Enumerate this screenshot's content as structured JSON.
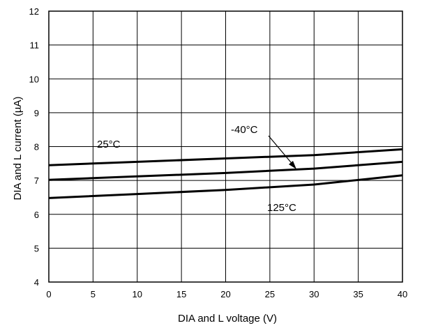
{
  "chart_data": {
    "type": "line",
    "title": "",
    "xlabel": "DIA and L voltage (V)",
    "ylabel": "DIA and L current (µA)",
    "xlim": [
      0,
      40
    ],
    "ylim": [
      4,
      12
    ],
    "x_ticks": [
      "0",
      "5",
      "10",
      "15",
      "20",
      "25",
      "30",
      "35",
      "40"
    ],
    "y_ticks": [
      "4",
      "5",
      "6",
      "7",
      "8",
      "9",
      "10",
      "11",
      "12"
    ],
    "grid": true,
    "series": [
      {
        "name": "25°C",
        "x": [
          0,
          10,
          20,
          30,
          40
        ],
        "y": [
          7.45,
          7.55,
          7.65,
          7.75,
          7.92
        ]
      },
      {
        "name": "-40°C",
        "x": [
          0,
          10,
          20,
          30,
          40
        ],
        "y": [
          7.02,
          7.12,
          7.22,
          7.35,
          7.55
        ]
      },
      {
        "name": "125°C",
        "x": [
          0,
          10,
          20,
          30,
          40
        ],
        "y": [
          6.48,
          6.6,
          6.72,
          6.88,
          7.15
        ]
      }
    ],
    "annotations": [
      "25°C",
      "-40°C",
      "125°C"
    ]
  }
}
